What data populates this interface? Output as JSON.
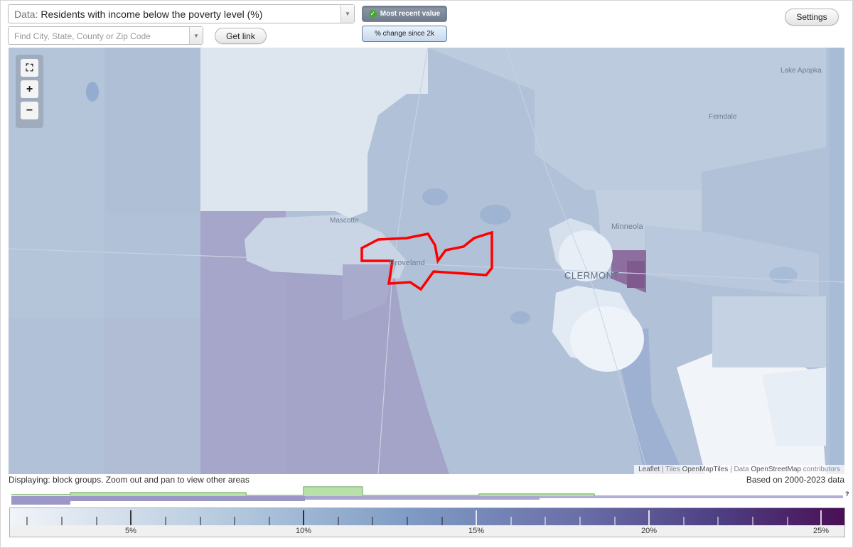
{
  "controls": {
    "data_label": "Data:",
    "data_value": "Residents with income below the poverty level (%)",
    "search_placeholder": "Find City, State, County or Zip Code",
    "get_link": "Get link",
    "settings": "Settings",
    "mode_active": "Most recent value",
    "mode_inactive": "% change since 2k"
  },
  "map": {
    "places": {
      "mascotte": "Mascotte",
      "groveland": "Groveland",
      "minneola": "Minneola",
      "clermont": "CLERMONT",
      "ferndale": "Ferndale",
      "cale_apopka": "Lake Apopka"
    },
    "highlight_color": "#ff0000",
    "attribution": {
      "leaflet": "Leaflet",
      "sep1": " | Tiles ",
      "tiles": "OpenMapTiles",
      "sep2": " | Data ",
      "data": "OpenStreetMap",
      "tail": " contributors"
    }
  },
  "footer": {
    "displaying": "Displaying: block groups. Zoom out and pan to view other areas",
    "based_on": "Based on 2000-2023 data"
  },
  "legend": {
    "unknown_marker": "?",
    "tick_labels": [
      "5%",
      "10%",
      "15%",
      "20%",
      "25%"
    ]
  }
}
